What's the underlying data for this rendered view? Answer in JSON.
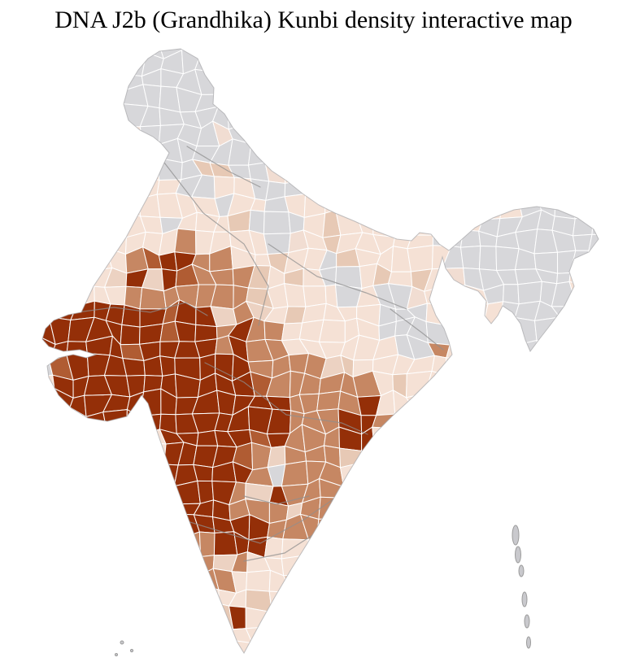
{
  "title": "DNA J2b (Grandhika) Kunbi density interactive map",
  "map": {
    "kind": "india-district-choropleth",
    "colors": {
      "high": "#942f08",
      "high_alt": "#b05c33",
      "medium": "#c68763",
      "medium_light": "#ecd2c2",
      "low": "#f5e1d5",
      "low_alt": "#e7c9b5",
      "none": "#d7d7da",
      "none_alt": "#f1ddd2",
      "district_border": "#ffffff",
      "state_border": "#8f8f8f",
      "coast_border": "#a5a5a8",
      "island_fill": "#c9c9cd",
      "island_border": "#9b9b9b",
      "background": "#ffffff",
      "title_color": "#000000"
    },
    "density_levels": [
      "high",
      "medium",
      "low",
      "no-data"
    ]
  }
}
